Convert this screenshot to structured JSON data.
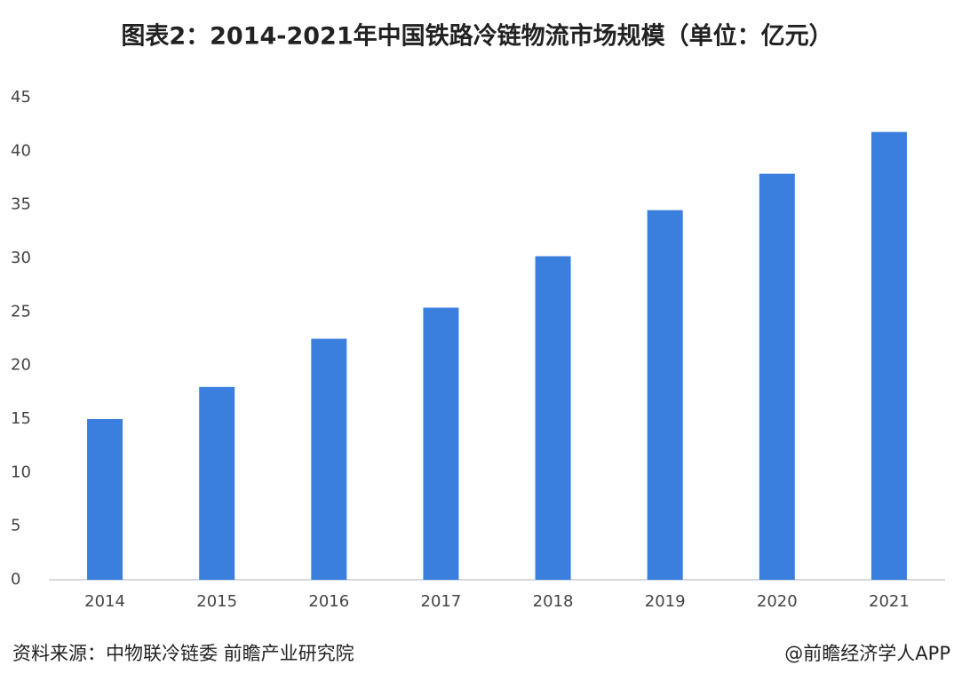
{
  "chart_data": {
    "type": "bar",
    "title": "图表2：2014-2021年中国铁路冷链物流市场规模（单位：亿元）",
    "categories": [
      "2014",
      "2015",
      "2016",
      "2017",
      "2018",
      "2019",
      "2020",
      "2021"
    ],
    "values": [
      15,
      18,
      22.5,
      25.4,
      30.2,
      34.5,
      37.9,
      41.8
    ],
    "color": "#3a7fde",
    "ylim": [
      0,
      45
    ],
    "yticks": [
      0,
      5,
      10,
      15,
      20,
      25,
      30,
      35,
      40,
      45
    ],
    "grid": false,
    "source": "资料来源：中物联冷链委 前瞻产业研究院",
    "credit": "@前瞻经济学人APP"
  }
}
